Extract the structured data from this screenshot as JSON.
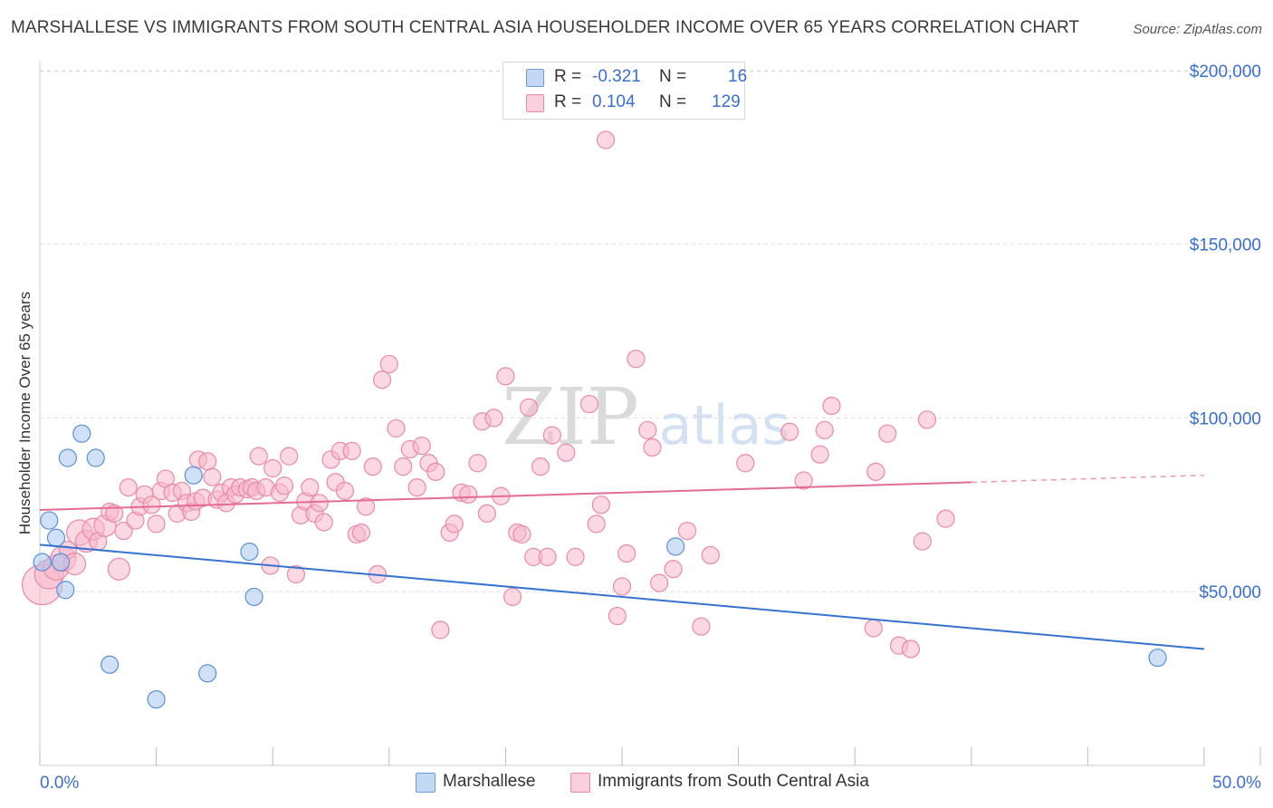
{
  "title": "MARSHALLESE VS IMMIGRANTS FROM SOUTH CENTRAL ASIA HOUSEHOLDER INCOME OVER 65 YEARS CORRELATION CHART",
  "source": "Source: ZipAtlas.com",
  "watermark": {
    "zip": "ZIP",
    "atlas": "atlas"
  },
  "legend": {
    "rows": [
      {
        "r_label": "R =",
        "r_value": "-0.321",
        "n_label": "N =",
        "n_value": "16"
      },
      {
        "r_label": "R =",
        "r_value": "0.104",
        "n_label": "N =",
        "n_value": "129"
      }
    ]
  },
  "bottom_legend": {
    "series1": "Marshallese",
    "series2": "Immigrants from South Central Asia"
  },
  "colors": {
    "marshallese_fill": "#aac8f0",
    "marshallese_stroke": "#5b8fd6",
    "marshallese_line": "#3672d0",
    "immigrants_fill": "#f7b8cb",
    "immigrants_stroke": "#e88aa8",
    "immigrants_line": "#e36b95",
    "axis_text": "#3b6fc9",
    "grid": "#dddddd"
  },
  "chart_data": {
    "type": "scatter",
    "title": "MARSHALLESE VS IMMIGRANTS FROM SOUTH CENTRAL ASIA HOUSEHOLDER INCOME OVER 65 YEARS CORRELATION CHART",
    "xlabel": "",
    "ylabel": "Householder Income Over 65 years",
    "xlim": [
      0,
      50
    ],
    "ylim": [
      0,
      205000
    ],
    "x_tick_labels": [
      "0.0%",
      "50.0%"
    ],
    "y_ticks": [
      50000,
      100000,
      150000,
      200000
    ],
    "y_tick_labels": [
      "$50,000",
      "$100,000",
      "$150,000",
      "$200,000"
    ],
    "grid": "horizontal dashed",
    "legend_position": "top-center",
    "series": [
      {
        "name": "Marshallese",
        "R": -0.321,
        "N": 16,
        "trend": {
          "x": [
            0,
            50
          ],
          "y": [
            63500,
            33500
          ]
        },
        "points": [
          {
            "x": 0.1,
            "y": 58500
          },
          {
            "x": 0.4,
            "y": 70500
          },
          {
            "x": 0.7,
            "y": 65500
          },
          {
            "x": 0.9,
            "y": 58500
          },
          {
            "x": 1.1,
            "y": 50500
          },
          {
            "x": 1.2,
            "y": 88500
          },
          {
            "x": 1.8,
            "y": 95500
          },
          {
            "x": 2.4,
            "y": 88500
          },
          {
            "x": 3.0,
            "y": 29000
          },
          {
            "x": 5.0,
            "y": 19000
          },
          {
            "x": 6.6,
            "y": 83500
          },
          {
            "x": 7.2,
            "y": 26500
          },
          {
            "x": 9.0,
            "y": 61500
          },
          {
            "x": 9.2,
            "y": 48500
          },
          {
            "x": 27.3,
            "y": 63000
          },
          {
            "x": 48.0,
            "y": 31000
          }
        ]
      },
      {
        "name": "Immigrants from South Central Asia",
        "R": 0.104,
        "N": 129,
        "trend": {
          "x": [
            0,
            40
          ],
          "y": [
            73500,
            81500
          ]
        },
        "trend_dashed": {
          "x": [
            40,
            50
          ],
          "y": [
            81500,
            83500
          ]
        },
        "points": [
          {
            "x": 0.1,
            "y": 52000,
            "s": 22
          },
          {
            "x": 0.4,
            "y": 55000,
            "s": 16
          },
          {
            "x": 0.7,
            "y": 57000,
            "s": 14
          },
          {
            "x": 1.0,
            "y": 59500,
            "s": 14
          },
          {
            "x": 1.2,
            "y": 62000
          },
          {
            "x": 1.5,
            "y": 58000,
            "s": 12
          },
          {
            "x": 1.7,
            "y": 67000,
            "s": 14
          },
          {
            "x": 2.0,
            "y": 64500,
            "s": 12
          },
          {
            "x": 2.3,
            "y": 68000,
            "s": 12
          },
          {
            "x": 2.5,
            "y": 64500
          },
          {
            "x": 2.8,
            "y": 69000,
            "s": 12
          },
          {
            "x": 3.0,
            "y": 73000
          },
          {
            "x": 3.2,
            "y": 72500
          },
          {
            "x": 3.4,
            "y": 56500,
            "s": 12
          },
          {
            "x": 3.6,
            "y": 67500
          },
          {
            "x": 3.8,
            "y": 80000
          },
          {
            "x": 4.1,
            "y": 70500
          },
          {
            "x": 4.3,
            "y": 74500
          },
          {
            "x": 4.5,
            "y": 78000
          },
          {
            "x": 4.8,
            "y": 75000
          },
          {
            "x": 5.0,
            "y": 69500
          },
          {
            "x": 5.2,
            "y": 79000
          },
          {
            "x": 5.4,
            "y": 82500
          },
          {
            "x": 5.7,
            "y": 78500
          },
          {
            "x": 5.9,
            "y": 72500
          },
          {
            "x": 6.1,
            "y": 79000
          },
          {
            "x": 6.3,
            "y": 75500
          },
          {
            "x": 6.5,
            "y": 73000
          },
          {
            "x": 6.7,
            "y": 76000
          },
          {
            "x": 6.8,
            "y": 88000
          },
          {
            "x": 7.0,
            "y": 77000
          },
          {
            "x": 7.2,
            "y": 87500
          },
          {
            "x": 7.4,
            "y": 83000
          },
          {
            "x": 7.6,
            "y": 76500
          },
          {
            "x": 7.8,
            "y": 78500
          },
          {
            "x": 8.0,
            "y": 75500
          },
          {
            "x": 8.2,
            "y": 80000
          },
          {
            "x": 8.4,
            "y": 78000
          },
          {
            "x": 8.6,
            "y": 80000
          },
          {
            "x": 8.9,
            "y": 79500
          },
          {
            "x": 9.1,
            "y": 80000
          },
          {
            "x": 9.3,
            "y": 79000
          },
          {
            "x": 9.4,
            "y": 89000
          },
          {
            "x": 9.7,
            "y": 80000
          },
          {
            "x": 9.9,
            "y": 57500
          },
          {
            "x": 10.0,
            "y": 85500
          },
          {
            "x": 10.3,
            "y": 78500
          },
          {
            "x": 10.5,
            "y": 80500
          },
          {
            "x": 10.7,
            "y": 89000
          },
          {
            "x": 11.0,
            "y": 55000
          },
          {
            "x": 11.2,
            "y": 72000
          },
          {
            "x": 11.4,
            "y": 76000
          },
          {
            "x": 11.6,
            "y": 80000
          },
          {
            "x": 11.8,
            "y": 72500
          },
          {
            "x": 12.0,
            "y": 75500
          },
          {
            "x": 12.2,
            "y": 70000
          },
          {
            "x": 12.5,
            "y": 88000
          },
          {
            "x": 12.7,
            "y": 81500
          },
          {
            "x": 12.9,
            "y": 90500
          },
          {
            "x": 13.1,
            "y": 79000
          },
          {
            "x": 13.4,
            "y": 90500
          },
          {
            "x": 13.6,
            "y": 66500
          },
          {
            "x": 13.8,
            "y": 67000
          },
          {
            "x": 14.0,
            "y": 74500
          },
          {
            "x": 14.3,
            "y": 86000
          },
          {
            "x": 14.5,
            "y": 55000
          },
          {
            "x": 14.7,
            "y": 111000
          },
          {
            "x": 15.0,
            "y": 115500
          },
          {
            "x": 15.3,
            "y": 97000
          },
          {
            "x": 15.6,
            "y": 86000
          },
          {
            "x": 15.9,
            "y": 91000
          },
          {
            "x": 16.2,
            "y": 80000
          },
          {
            "x": 16.4,
            "y": 92000
          },
          {
            "x": 16.7,
            "y": 87000
          },
          {
            "x": 17.0,
            "y": 84500
          },
          {
            "x": 17.2,
            "y": 39000
          },
          {
            "x": 17.6,
            "y": 67000
          },
          {
            "x": 17.8,
            "y": 69500
          },
          {
            "x": 18.1,
            "y": 78500
          },
          {
            "x": 18.4,
            "y": 78000
          },
          {
            "x": 18.8,
            "y": 87000
          },
          {
            "x": 19.0,
            "y": 99000
          },
          {
            "x": 19.2,
            "y": 72500
          },
          {
            "x": 19.5,
            "y": 100000
          },
          {
            "x": 19.8,
            "y": 77500
          },
          {
            "x": 20.0,
            "y": 112000
          },
          {
            "x": 20.3,
            "y": 48500
          },
          {
            "x": 20.5,
            "y": 67000
          },
          {
            "x": 20.7,
            "y": 66500
          },
          {
            "x": 21.0,
            "y": 103000
          },
          {
            "x": 21.2,
            "y": 60000
          },
          {
            "x": 21.5,
            "y": 86000
          },
          {
            "x": 21.8,
            "y": 60000
          },
          {
            "x": 22.0,
            "y": 95000
          },
          {
            "x": 22.6,
            "y": 90000
          },
          {
            "x": 23.0,
            "y": 60000
          },
          {
            "x": 23.6,
            "y": 104000
          },
          {
            "x": 23.9,
            "y": 69500
          },
          {
            "x": 24.1,
            "y": 75000
          },
          {
            "x": 24.3,
            "y": 180000
          },
          {
            "x": 24.8,
            "y": 43000
          },
          {
            "x": 25.0,
            "y": 51500
          },
          {
            "x": 25.2,
            "y": 61000
          },
          {
            "x": 25.6,
            "y": 117000
          },
          {
            "x": 26.1,
            "y": 96500
          },
          {
            "x": 26.3,
            "y": 91500
          },
          {
            "x": 26.6,
            "y": 52500
          },
          {
            "x": 27.2,
            "y": 56500
          },
          {
            "x": 27.8,
            "y": 67500
          },
          {
            "x": 28.4,
            "y": 40000
          },
          {
            "x": 28.8,
            "y": 60500
          },
          {
            "x": 30.3,
            "y": 87000
          },
          {
            "x": 32.2,
            "y": 96000
          },
          {
            "x": 32.8,
            "y": 82000
          },
          {
            "x": 33.5,
            "y": 89500
          },
          {
            "x": 33.7,
            "y": 96500
          },
          {
            "x": 34.0,
            "y": 103500
          },
          {
            "x": 35.8,
            "y": 39500
          },
          {
            "x": 35.9,
            "y": 84500
          },
          {
            "x": 36.4,
            "y": 95500
          },
          {
            "x": 36.9,
            "y": 34500
          },
          {
            "x": 37.4,
            "y": 33500
          },
          {
            "x": 37.9,
            "y": 64500
          },
          {
            "x": 38.1,
            "y": 99500
          },
          {
            "x": 38.9,
            "y": 71000
          }
        ]
      }
    ]
  }
}
